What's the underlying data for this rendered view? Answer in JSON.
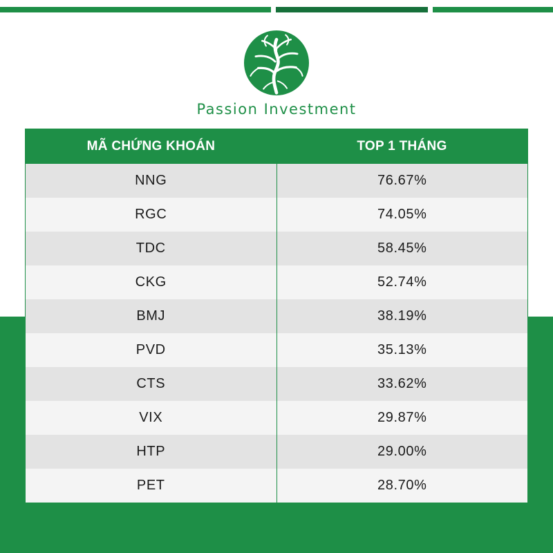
{
  "colors": {
    "brand_green": "#1e8f47",
    "dark_green": "#16703a",
    "row_dark": "#e3e3e3",
    "row_light": "#f4f4f4"
  },
  "brand": {
    "name": "Passion Investment",
    "logo_icon": "tree-logo-icon"
  },
  "table": {
    "headers": [
      "MÃ CHỨNG KHOÁN",
      "TOP 1 THÁNG"
    ],
    "rows": [
      [
        "NNG",
        "76.67%"
      ],
      [
        "RGC",
        "74.05%"
      ],
      [
        "TDC",
        "58.45%"
      ],
      [
        "CKG",
        "52.74%"
      ],
      [
        "BMJ",
        "38.19%"
      ],
      [
        "PVD",
        "35.13%"
      ],
      [
        "CTS",
        "33.62%"
      ],
      [
        "VIX",
        "29.87%"
      ],
      [
        "HTP",
        "29.00%"
      ],
      [
        "PET",
        "28.70%"
      ]
    ]
  }
}
